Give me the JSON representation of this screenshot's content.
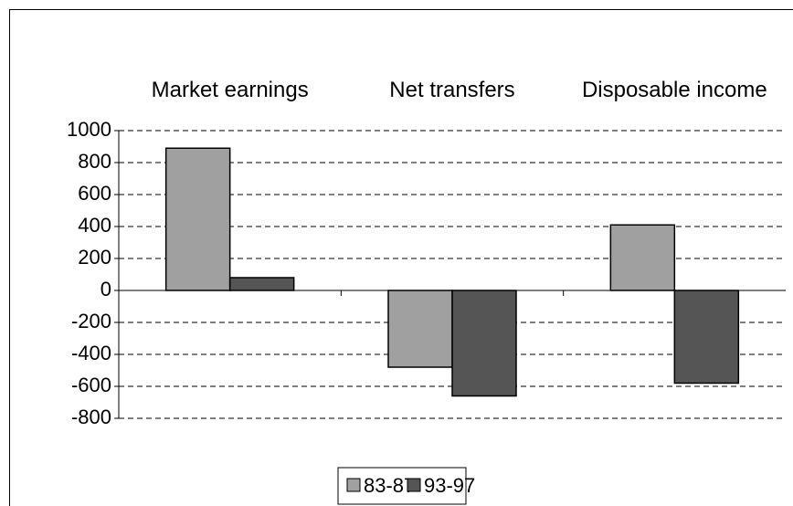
{
  "chart_data": {
    "type": "bar",
    "categories": [
      "Market earnings",
      "Net transfers",
      "Disposable income"
    ],
    "series": [
      {
        "name": "83-87",
        "color": "#a0a0a0",
        "values": [
          890,
          -480,
          410
        ]
      },
      {
        "name": "93-97",
        "color": "#555555",
        "values": [
          80,
          -660,
          -580
        ]
      }
    ],
    "ylim": [
      -800,
      1000
    ],
    "yticks": [
      -800,
      -600,
      -400,
      -200,
      0,
      200,
      400,
      600,
      800,
      1000
    ],
    "grid": true,
    "legend": "bottom"
  }
}
